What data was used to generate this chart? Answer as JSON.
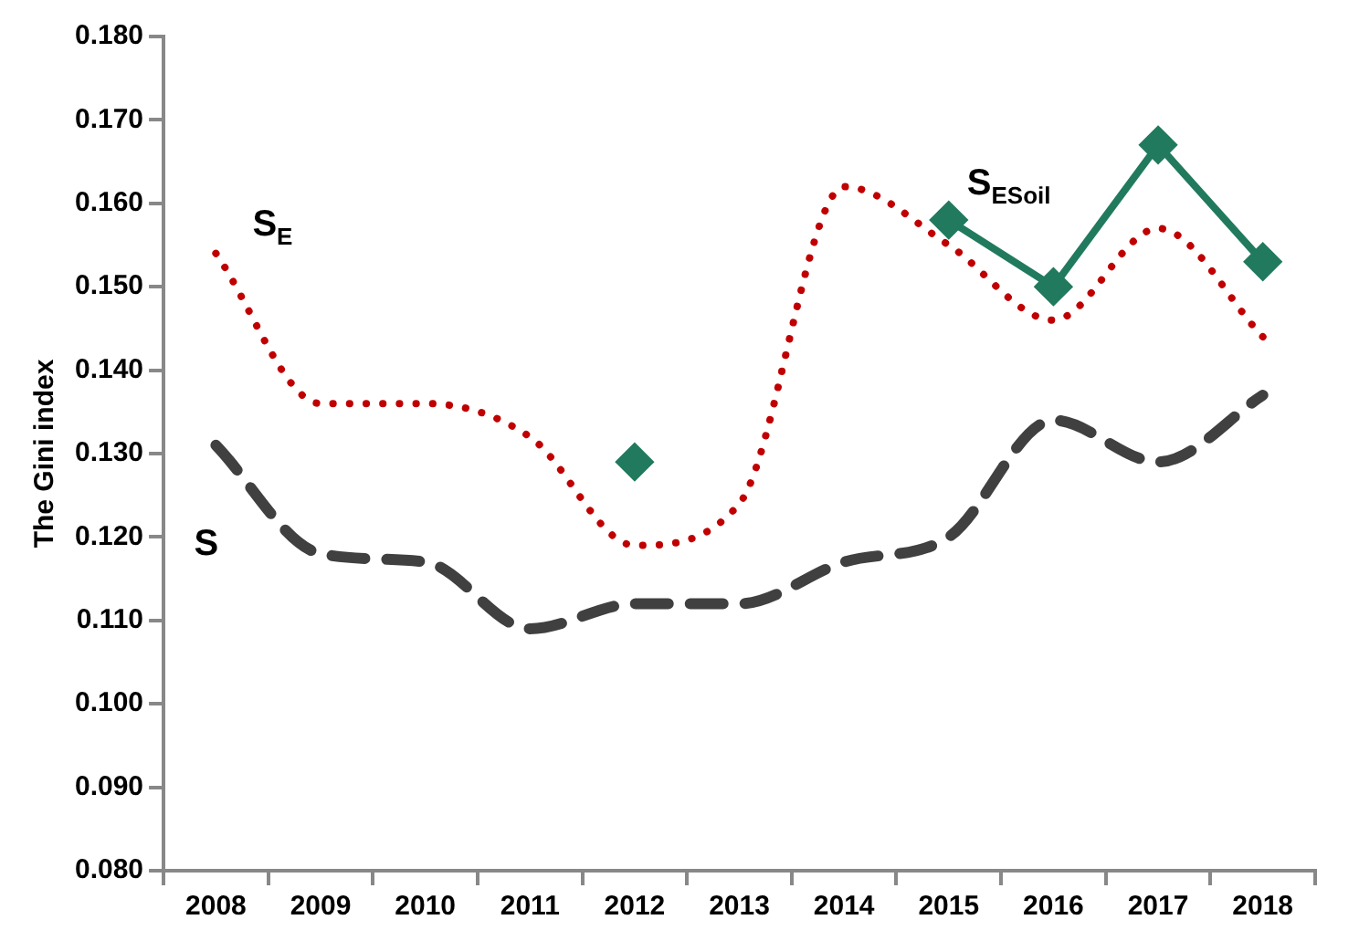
{
  "chart_data": {
    "type": "line",
    "ylabel": "The Gini index",
    "categories": [
      "2008",
      "2009",
      "2010",
      "2011",
      "2012",
      "2013",
      "2014",
      "2015",
      "2016",
      "2017",
      "2018"
    ],
    "series": [
      {
        "name": "S$_{E}$",
        "color": "#c00000",
        "line_style": "dotted",
        "marker": "none",
        "values": [
          0.154,
          0.136,
          0.136,
          0.132,
          0.119,
          0.124,
          0.162,
          0.155,
          0.146,
          0.157,
          0.144
        ]
      },
      {
        "name": "S",
        "color": "#404040",
        "line_style": "dashed",
        "marker": "none",
        "values": [
          0.131,
          0.118,
          0.117,
          0.109,
          0.112,
          0.112,
          0.117,
          0.12,
          0.134,
          0.129,
          0.137
        ]
      },
      {
        "name": "S$_{ESoil}$",
        "color": "#217a5e",
        "line_style": "solid",
        "marker": "diamond",
        "values": [
          null,
          null,
          null,
          null,
          0.129,
          null,
          null,
          0.158,
          0.15,
          0.167,
          0.153
        ]
      }
    ],
    "ylim": [
      0.08,
      0.18
    ],
    "yticks": [
      {
        "value": 0.08,
        "label": "0.080"
      },
      {
        "value": 0.09,
        "label": "0.090"
      },
      {
        "value": 0.1,
        "label": "0.100"
      },
      {
        "value": 0.11,
        "label": "0.110"
      },
      {
        "value": 0.12,
        "label": "0.120"
      },
      {
        "value": 0.13,
        "label": "0.130"
      },
      {
        "value": 0.14,
        "label": "0.140"
      },
      {
        "value": 0.15,
        "label": "0.150"
      },
      {
        "value": 0.16,
        "label": "0.160"
      },
      {
        "value": 0.17,
        "label": "0.170"
      },
      {
        "value": 0.18,
        "label": "0.180"
      }
    ],
    "grid": false,
    "legend": false
  }
}
